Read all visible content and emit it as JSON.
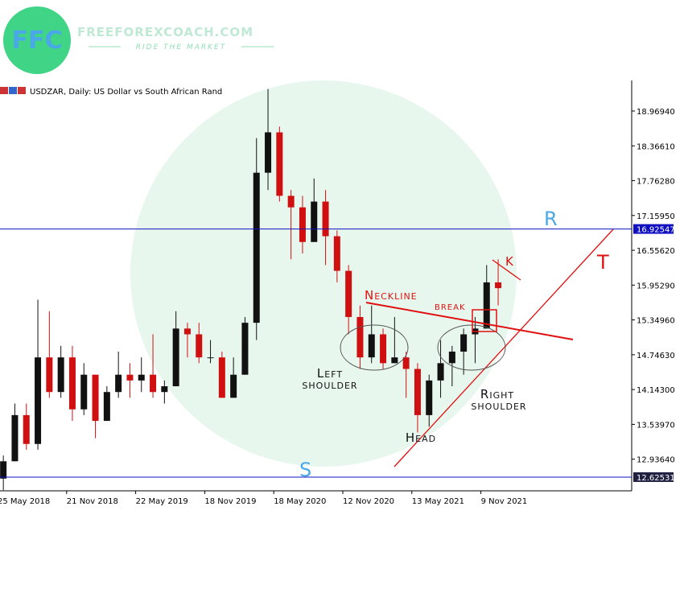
{
  "chart_data": {
    "type": "candlestick",
    "title": "USDZAR, Daily:  US Dollar vs South African Rand",
    "logo": {
      "mark": "FFC",
      "name": "FREEFOREXCOACH.COM",
      "tagline": "RIDE THE MARKET"
    },
    "categories": [
      "25 May 2018",
      null,
      null,
      null,
      null,
      null,
      "21 Nov 2018",
      null,
      null,
      null,
      null,
      null,
      "22 May 2019",
      null,
      null,
      null,
      null,
      null,
      "18 Nov 2019",
      null,
      null,
      null,
      null,
      null,
      "18 May 2020",
      null,
      null,
      null,
      null,
      null,
      "12 Nov 2020",
      null,
      null,
      null,
      null,
      null,
      "13 May 2021",
      null,
      null,
      null,
      null,
      null,
      "9 Nov 2021",
      null
    ],
    "open": [
      12.6,
      12.9,
      13.7,
      13.2,
      14.7,
      14.1,
      14.7,
      13.8,
      14.4,
      13.6,
      14.1,
      14.4,
      14.3,
      14.4,
      14.1,
      14.2,
      15.2,
      15.1,
      14.7,
      14.7,
      14.0,
      14.4,
      15.3,
      17.9,
      18.6,
      17.5,
      17.3,
      16.7,
      17.4,
      16.8,
      16.2,
      15.4,
      14.7,
      15.1,
      14.6,
      14.7,
      14.5,
      13.7,
      14.3,
      14.6,
      14.8,
      15.1,
      15.2,
      16.0
    ],
    "high": [
      13.0,
      13.9,
      13.9,
      15.7,
      15.5,
      14.9,
      14.9,
      14.6,
      14.4,
      14.2,
      14.8,
      14.6,
      14.7,
      15.1,
      14.3,
      15.5,
      15.3,
      15.3,
      15.0,
      14.8,
      14.7,
      15.4,
      18.5,
      19.35,
      18.7,
      17.6,
      17.5,
      17.8,
      17.6,
      16.9,
      16.3,
      15.6,
      15.6,
      15.2,
      15.4,
      14.8,
      14.6,
      14.4,
      15.0,
      14.9,
      15.2,
      15.4,
      16.3,
      16.4
    ],
    "low": [
      12.4,
      12.9,
      13.1,
      13.1,
      14.0,
      14.0,
      13.6,
      13.7,
      13.3,
      13.6,
      14.0,
      14.0,
      14.1,
      14.0,
      13.9,
      14.2,
      14.7,
      14.6,
      14.6,
      14.0,
      14.0,
      14.4,
      15.0,
      17.6,
      17.4,
      16.4,
      16.5,
      16.7,
      16.3,
      16.0,
      15.1,
      14.5,
      14.6,
      14.5,
      14.6,
      14.0,
      13.4,
      13.5,
      14.0,
      14.2,
      14.4,
      14.6,
      15.2,
      15.6
    ],
    "close": [
      12.9,
      13.7,
      13.2,
      14.7,
      14.1,
      14.7,
      13.8,
      14.4,
      13.6,
      14.1,
      14.4,
      14.3,
      14.4,
      14.1,
      14.2,
      15.2,
      15.1,
      14.7,
      14.7,
      14.0,
      14.4,
      15.3,
      17.9,
      18.6,
      17.5,
      17.3,
      16.7,
      17.4,
      16.8,
      16.2,
      15.4,
      14.7,
      15.1,
      14.6,
      14.7,
      14.5,
      13.7,
      14.3,
      14.6,
      14.8,
      15.1,
      15.2,
      16.0,
      15.9
    ],
    "up_color": "#111111",
    "down_color": "#d01010",
    "ylim": [
      12.388,
      19.499
    ],
    "yticks": [
      {
        "value": 18.9694,
        "label": "18.96940"
      },
      {
        "value": 18.3661,
        "label": "18.36610"
      },
      {
        "value": 17.7628,
        "label": "17.76280"
      },
      {
        "value": 17.1595,
        "label": "17.15950"
      },
      {
        "value": 16.5562,
        "label": "16.55620"
      },
      {
        "value": 15.9529,
        "label": "15.95290"
      },
      {
        "value": 15.3496,
        "label": "15.34960"
      },
      {
        "value": 14.7463,
        "label": "14.74630"
      },
      {
        "value": 14.143,
        "label": "14.14300"
      },
      {
        "value": 13.5397,
        "label": "13.53970"
      },
      {
        "value": 12.9364,
        "label": "12.93640"
      }
    ],
    "levels": [
      {
        "name": "R",
        "value": 16.92547,
        "color": "#1010c0",
        "label_bg": "#1010c0"
      },
      {
        "name": "S",
        "value": 12.62531,
        "color": "#1010c0",
        "label_bg": "#202040"
      }
    ],
    "annotations": {
      "neckline": "Neckline",
      "break": "break",
      "k": "K",
      "t": "T",
      "left_shoulder": [
        "Left",
        "shoulder"
      ],
      "right_shoulder": [
        "Right",
        "shoulder"
      ],
      "head": "Head"
    }
  }
}
